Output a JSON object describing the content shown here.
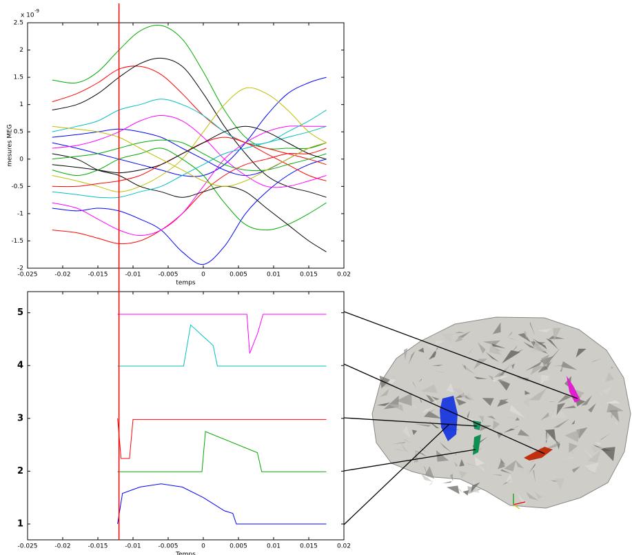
{
  "chart_data": [
    {
      "type": "line",
      "ylabel": "mesures MEG",
      "xlabel": "temps",
      "multiplier_base": "x 10",
      "multiplier_exponent": "-9",
      "xlim": [
        -0.025,
        0.02
      ],
      "xticks": [
        -0.025,
        -0.02,
        -0.015,
        -0.01,
        -0.005,
        0,
        0.005,
        0.01,
        0.015,
        0.02
      ],
      "ylim": [
        -2,
        2.5
      ],
      "yticks": [
        -2,
        -1.5,
        -1,
        -0.5,
        0,
        0.5,
        1,
        1.5,
        2,
        2.5
      ],
      "cursor_x": -0.012,
      "cursor_color": "#ff0000",
      "x": [
        -0.0215,
        -0.018,
        -0.015,
        -0.012,
        -0.009,
        -0.006,
        -0.003,
        0,
        0.003,
        0.006,
        0.009,
        0.012,
        0.015,
        0.0175
      ],
      "series": [
        {
          "color": "#00aa00",
          "values": [
            1.45,
            1.4,
            1.6,
            2.0,
            2.35,
            2.45,
            2.2,
            1.6,
            0.9,
            0.4,
            0.2,
            0.2,
            0.2,
            0.3
          ]
        },
        {
          "color": "#0000ff",
          "values": [
            -0.9,
            -0.95,
            -0.9,
            -0.95,
            -1.1,
            -1.3,
            -1.7,
            -1.93,
            -1.6,
            -1.0,
            -0.6,
            -0.3,
            -0.1,
            0.0
          ]
        },
        {
          "color": "#ff0000",
          "values": [
            1.05,
            1.2,
            1.4,
            1.65,
            1.7,
            1.55,
            1.2,
            0.8,
            0.5,
            0.3,
            0.2,
            0.1,
            0.0,
            -0.1
          ]
        },
        {
          "color": "#000000",
          "values": [
            0.9,
            1.0,
            1.2,
            1.5,
            1.75,
            1.85,
            1.7,
            1.2,
            0.6,
            0.1,
            -0.3,
            -0.5,
            -0.6,
            -0.7
          ]
        },
        {
          "color": "#0000ff",
          "values": [
            0.3,
            0.2,
            0.1,
            0.0,
            -0.1,
            -0.2,
            -0.3,
            -0.3,
            -0.1,
            0.3,
            0.8,
            1.2,
            1.4,
            1.5
          ]
        },
        {
          "color": "#ff0000",
          "values": [
            -1.3,
            -1.35,
            -1.45,
            -1.55,
            -1.5,
            -1.3,
            -1.0,
            -0.6,
            -0.3,
            -0.1,
            0.0,
            0.1,
            0.1,
            0.2
          ]
        },
        {
          "color": "#ff00ff",
          "values": [
            -0.8,
            -0.9,
            -1.1,
            -1.3,
            -1.4,
            -1.3,
            -1.0,
            -0.5,
            0.0,
            0.3,
            0.5,
            0.6,
            0.6,
            0.6
          ]
        },
        {
          "color": "#00bfbf",
          "values": [
            0.5,
            0.6,
            0.7,
            0.9,
            1.0,
            1.1,
            1.0,
            0.8,
            0.5,
            0.3,
            0.3,
            0.5,
            0.7,
            0.9
          ]
        },
        {
          "color": "#bfbf00",
          "values": [
            -0.3,
            -0.4,
            -0.5,
            -0.6,
            -0.5,
            -0.3,
            0.0,
            0.5,
            1.0,
            1.3,
            1.2,
            0.9,
            0.5,
            0.3
          ]
        },
        {
          "color": "#00aa00",
          "values": [
            -0.2,
            -0.3,
            -0.2,
            0.0,
            0.1,
            0.2,
            0.0,
            -0.3,
            -0.8,
            -1.2,
            -1.3,
            -1.2,
            -1.0,
            -0.8
          ]
        },
        {
          "color": "#000000",
          "values": [
            0.1,
            0.0,
            -0.2,
            -0.3,
            -0.5,
            -0.6,
            -0.7,
            -0.6,
            -0.5,
            -0.6,
            -0.9,
            -1.2,
            -1.5,
            -1.7
          ]
        },
        {
          "color": "#0000ff",
          "values": [
            0.4,
            0.45,
            0.5,
            0.55,
            0.5,
            0.4,
            0.2,
            0.0,
            -0.2,
            -0.3,
            -0.2,
            0.0,
            0.2,
            0.3
          ]
        },
        {
          "color": "#ff0000",
          "values": [
            -0.5,
            -0.5,
            -0.45,
            -0.4,
            -0.3,
            -0.1,
            0.1,
            0.3,
            0.4,
            0.3,
            0.1,
            -0.1,
            -0.3,
            -0.4
          ]
        },
        {
          "color": "#ff00ff",
          "values": [
            0.2,
            0.25,
            0.35,
            0.5,
            0.7,
            0.8,
            0.7,
            0.4,
            0.0,
            -0.3,
            -0.5,
            -0.5,
            -0.4,
            -0.3
          ]
        },
        {
          "color": "#00bfbf",
          "values": [
            -0.6,
            -0.65,
            -0.7,
            -0.7,
            -0.6,
            -0.5,
            -0.3,
            -0.1,
            0.1,
            0.2,
            0.3,
            0.4,
            0.5,
            0.6
          ]
        },
        {
          "color": "#00aa00",
          "values": [
            0.0,
            0.05,
            0.1,
            0.2,
            0.3,
            0.35,
            0.3,
            0.1,
            -0.1,
            -0.2,
            -0.2,
            -0.1,
            0.0,
            0.1
          ]
        },
        {
          "color": "#000000",
          "values": [
            -0.1,
            -0.15,
            -0.2,
            -0.25,
            -0.2,
            -0.1,
            0.1,
            0.3,
            0.5,
            0.6,
            0.5,
            0.3,
            0.1,
            0.0
          ]
        },
        {
          "color": "#bfbf00",
          "values": [
            0.6,
            0.55,
            0.5,
            0.4,
            0.2,
            0.0,
            -0.2,
            -0.4,
            -0.5,
            -0.4,
            -0.2,
            0.0,
            0.2,
            0.3
          ]
        }
      ]
    },
    {
      "type": "line",
      "xlabel": "Temps",
      "xlim": [
        -0.025,
        0.02
      ],
      "xticks": [
        -0.025,
        -0.02,
        -0.015,
        -0.01,
        -0.005,
        0,
        0.005,
        0.01,
        0.015,
        0.02
      ],
      "ylim": [
        0.7,
        5.4
      ],
      "yticks": [
        1,
        2,
        3,
        4,
        5
      ],
      "cursor_x": -0.012,
      "cursor_color": "#ff0000",
      "series": [
        {
          "color": "#ff00ff",
          "x": [
            -0.0122,
            0.0062,
            0.0066,
            0.0077,
            0.0085,
            0.0175
          ],
          "values": [
            4.97,
            4.97,
            4.23,
            4.6,
            4.97,
            4.97
          ]
        },
        {
          "color": "#00bfbf",
          "x": [
            -0.0122,
            -0.0028,
            -0.0018,
            0.0014,
            0.002,
            0.0175
          ],
          "values": [
            3.99,
            3.99,
            4.77,
            4.38,
            3.99,
            3.99
          ]
        },
        {
          "color": "#ff0000",
          "x": [
            -0.0122,
            -0.0117,
            -0.0105,
            -0.01,
            0.0175
          ],
          "values": [
            3.0,
            2.24,
            2.24,
            2.98,
            2.98
          ]
        },
        {
          "color": "#00aa00",
          "x": [
            -0.0122,
            -0.0002,
            0.0003,
            0.0077,
            0.0083,
            0.0175
          ],
          "values": [
            1.99,
            1.99,
            2.75,
            2.35,
            1.99,
            1.99
          ]
        },
        {
          "color": "#0000ff",
          "x": [
            -0.0122,
            -0.0115,
            -0.009,
            -0.006,
            -0.003,
            0,
            0.003,
            0.0042,
            0.0047,
            0.0175
          ],
          "values": [
            1.0,
            1.58,
            1.7,
            1.76,
            1.7,
            1.5,
            1.25,
            1.2,
            1.0,
            1.0
          ]
        }
      ]
    }
  ]
}
